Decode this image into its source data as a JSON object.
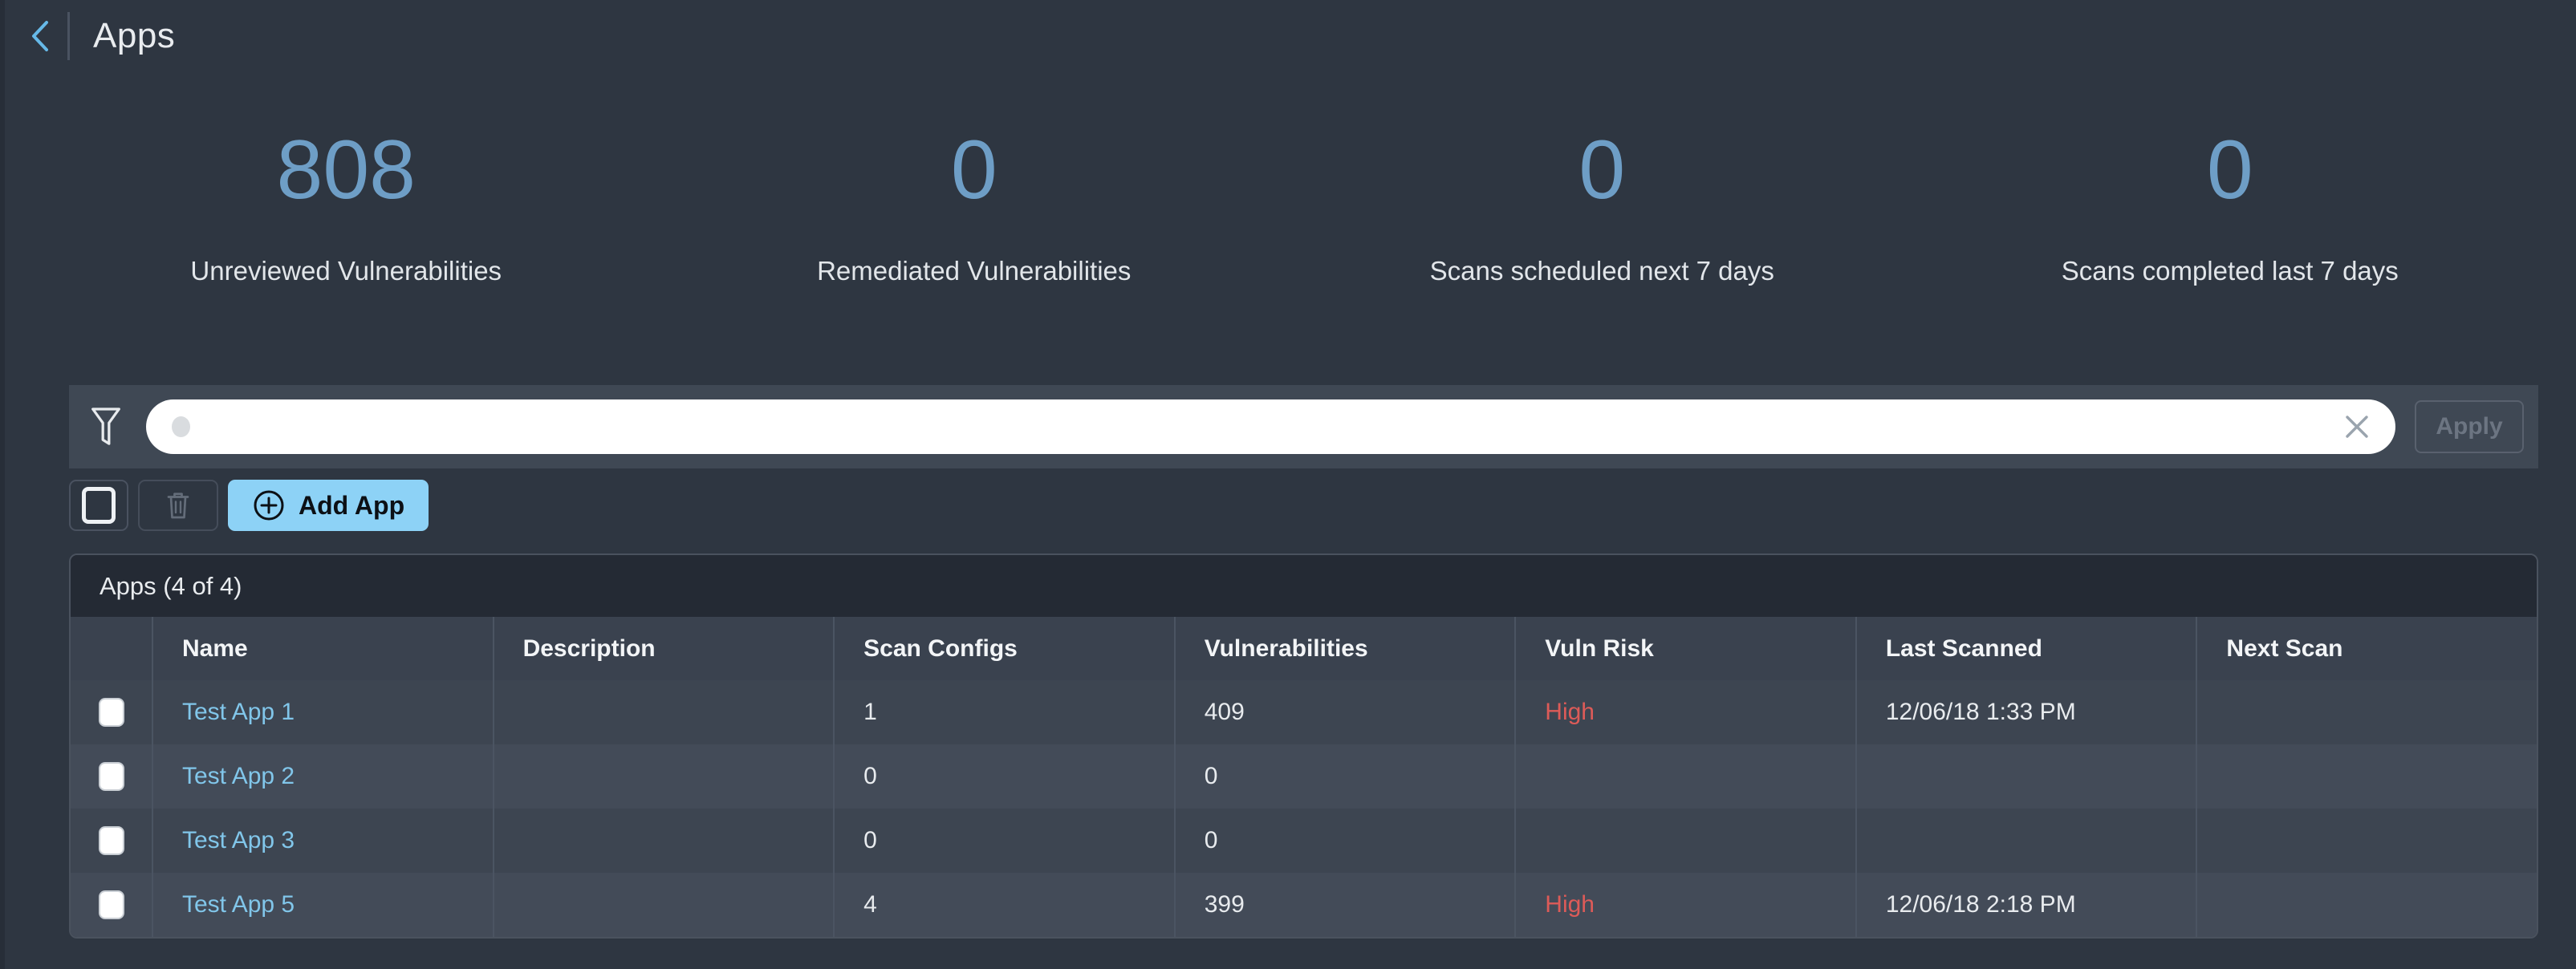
{
  "header": {
    "title": "Apps",
    "back_icon": "chevron-left-icon"
  },
  "stats": [
    {
      "value": "808",
      "label": "Unreviewed Vulnerabilities"
    },
    {
      "value": "0",
      "label": "Remediated Vulnerabilities"
    },
    {
      "value": "0",
      "label": "Scans scheduled next 7 days"
    },
    {
      "value": "0",
      "label": "Scans completed last 7 days"
    }
  ],
  "filter": {
    "icon": "funnel-icon",
    "input_value": "",
    "input_placeholder": "",
    "clear_icon": "x-icon",
    "apply_label": "Apply"
  },
  "toolbar": {
    "select_all_checked": false,
    "delete_icon": "trash-icon",
    "add_icon": "plus-circle-icon",
    "add_app_label": "Add App"
  },
  "table": {
    "title": "Apps (4 of 4)",
    "columns": [
      {
        "key": "name",
        "label": "Name"
      },
      {
        "key": "description",
        "label": "Description"
      },
      {
        "key": "scan_configs",
        "label": "Scan Configs"
      },
      {
        "key": "vulnerabilities",
        "label": "Vulnerabilities"
      },
      {
        "key": "vuln_risk",
        "label": "Vuln Risk"
      },
      {
        "key": "last_scanned",
        "label": "Last Scanned"
      },
      {
        "key": "next_scan",
        "label": "Next Scan"
      }
    ],
    "rows": [
      {
        "name": "Test App 1",
        "description": "",
        "scan_configs": "1",
        "vulnerabilities": "409",
        "vuln_risk": "High",
        "last_scanned": "12/06/18 1:33 PM",
        "next_scan": ""
      },
      {
        "name": "Test App 2",
        "description": "",
        "scan_configs": "0",
        "vulnerabilities": "0",
        "vuln_risk": "",
        "last_scanned": "",
        "next_scan": ""
      },
      {
        "name": "Test App 3",
        "description": "",
        "scan_configs": "0",
        "vulnerabilities": "0",
        "vuln_risk": "",
        "last_scanned": "",
        "next_scan": ""
      },
      {
        "name": "Test App 5",
        "description": "",
        "scan_configs": "4",
        "vulnerabilities": "399",
        "vuln_risk": "High",
        "last_scanned": "12/06/18 2:18 PM",
        "next_scan": ""
      }
    ]
  },
  "colors": {
    "page-bg": "#2e3641",
    "accent-blue": "#6e9ec6",
    "link-blue": "#81c6ea",
    "risk-red": "#dd5b58",
    "add-btn": "#8dd2f6",
    "filterbar-bg": "#3f4854",
    "table-title-bg": "#242a34",
    "thead-bg": "#3a424f",
    "row-odd": "#3d4551",
    "row-even": "#434b58",
    "back-blue": "#66b9e8"
  }
}
